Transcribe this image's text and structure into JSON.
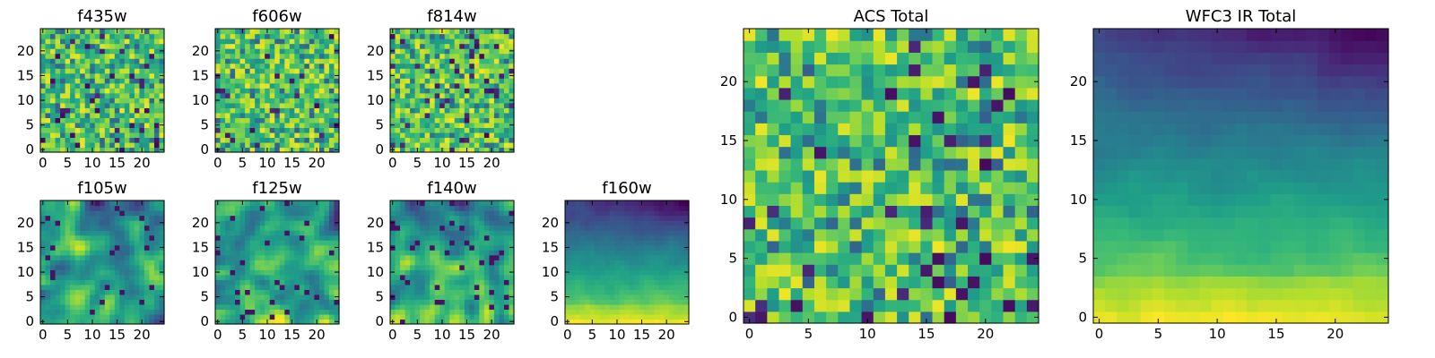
{
  "figure": {
    "background": "#ffffff",
    "colormap": "viridis",
    "colormap_stops": [
      "#440154",
      "#3b528b",
      "#21918c",
      "#5ec962",
      "#fde725"
    ]
  },
  "chart_data": [
    {
      "id": "f435w",
      "type": "heatmap",
      "title": "f435w",
      "grid_size": [
        25,
        25
      ],
      "xticks": [
        0,
        5,
        10,
        15,
        20
      ],
      "yticks": [
        0,
        5,
        10,
        15,
        20
      ],
      "xlim": [
        -0.5,
        24.5
      ],
      "ylim": [
        -0.5,
        24.5
      ],
      "value_range": [
        0,
        1
      ],
      "pattern": "uniform noise, mostly green-yellow with scattered dark purple pixels"
    },
    {
      "id": "f606w",
      "type": "heatmap",
      "title": "f606w",
      "grid_size": [
        25,
        25
      ],
      "xticks": [
        0,
        5,
        10,
        15,
        20
      ],
      "yticks": [
        0,
        5,
        10,
        15,
        20
      ],
      "xlim": [
        -0.5,
        24.5
      ],
      "ylim": [
        -0.5,
        24.5
      ],
      "value_range": [
        0,
        1
      ],
      "pattern": "uniform noise, green-yellow with scattered dark pixels"
    },
    {
      "id": "f814w",
      "type": "heatmap",
      "title": "f814w",
      "grid_size": [
        25,
        25
      ],
      "xticks": [
        0,
        5,
        10,
        15,
        20
      ],
      "yticks": [
        0,
        5,
        10,
        15,
        20
      ],
      "xlim": [
        -0.5,
        24.5
      ],
      "ylim": [
        -0.5,
        24.5
      ],
      "value_range": [
        0,
        1
      ],
      "pattern": "uniform noise, green-yellow with scattered dark pixels"
    },
    {
      "id": "f105w",
      "type": "heatmap",
      "title": "f105w",
      "grid_size": [
        25,
        25
      ],
      "xticks": [
        0,
        5,
        10,
        15,
        20
      ],
      "yticks": [
        0,
        5,
        10,
        15,
        20
      ],
      "xlim": [
        -0.5,
        24.5
      ],
      "ylim": [
        -0.5,
        24.5
      ],
      "value_range": [
        0,
        1
      ],
      "pattern": "smoothed noise, green with dark patches"
    },
    {
      "id": "f125w",
      "type": "heatmap",
      "title": "f125w",
      "grid_size": [
        25,
        25
      ],
      "xticks": [
        0,
        5,
        10,
        15,
        20
      ],
      "yticks": [
        0,
        5,
        10,
        15,
        20
      ],
      "xlim": [
        -0.5,
        24.5
      ],
      "ylim": [
        -0.5,
        24.5
      ],
      "value_range": [
        0,
        1
      ],
      "pattern": "smoothed noise, brighter toward bottom"
    },
    {
      "id": "f140w",
      "type": "heatmap",
      "title": "f140w",
      "grid_size": [
        25,
        25
      ],
      "xticks": [
        0,
        5,
        10,
        15,
        20
      ],
      "yticks": [
        0,
        5,
        10,
        15,
        20
      ],
      "xlim": [
        -0.5,
        24.5
      ],
      "ylim": [
        -0.5,
        24.5
      ],
      "value_range": [
        0,
        1
      ],
      "pattern": "smoothed noise, dark patches top, bright bottom"
    },
    {
      "id": "f160w",
      "type": "heatmap",
      "title": "f160w",
      "grid_size": [
        25,
        25
      ],
      "xticks": [
        0,
        5,
        10,
        15,
        20
      ],
      "yticks": [
        0,
        5,
        10,
        15,
        20
      ],
      "xlim": [
        -0.5,
        24.5
      ],
      "ylim": [
        -0.5,
        24.5
      ],
      "value_range": [
        0,
        1
      ],
      "pattern": "gradient: dark at top-right, yellow along bottom"
    },
    {
      "id": "acs-total",
      "type": "heatmap",
      "title": "ACS Total",
      "grid_size": [
        25,
        25
      ],
      "xticks": [
        0,
        5,
        10,
        15,
        20
      ],
      "yticks": [
        0,
        5,
        10,
        15,
        20
      ],
      "xlim": [
        -0.5,
        24.5
      ],
      "ylim": [
        -0.5,
        24.5
      ],
      "value_range": [
        0,
        1
      ],
      "pattern": "noise, mostly green-yellow with scattered dark pixels"
    },
    {
      "id": "wfc3-ir-total",
      "type": "heatmap",
      "title": "WFC3 IR Total",
      "grid_size": [
        25,
        25
      ],
      "xticks": [
        0,
        5,
        10,
        15,
        20
      ],
      "yticks": [
        0,
        5,
        10,
        15,
        20
      ],
      "xlim": [
        -0.5,
        24.5
      ],
      "ylim": [
        -0.5,
        24.5
      ],
      "value_range": [
        0,
        1
      ],
      "pattern": "gradient: dark blue-purple at top, yellow along bottom"
    }
  ]
}
